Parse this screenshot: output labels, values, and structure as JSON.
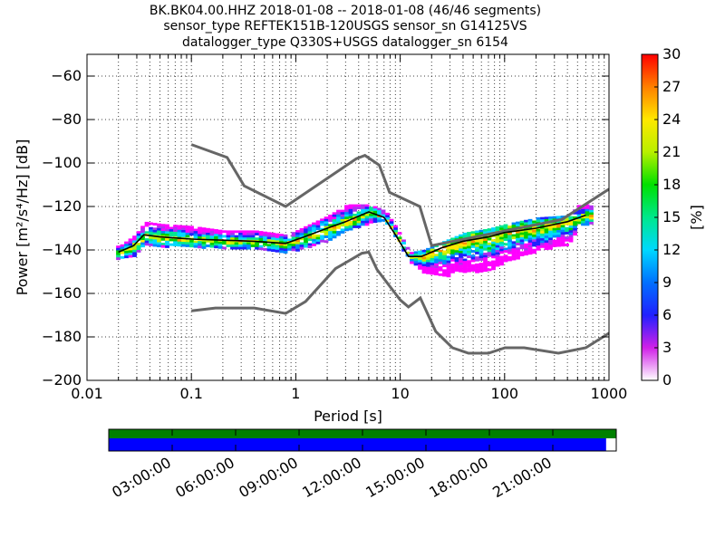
{
  "chart_data": [
    {
      "type": "heatmap",
      "title_lines": [
        "BK.BK04.00.HHZ   2018-01-08 -- 2018-01-08  (46/46 segments)",
        "sensor_type REFTEK151B-120USGS sensor_sn G14125VS",
        "datalogger_type Q330S+USGS datalogger_sn 6154"
      ],
      "xlabel": "Period [s]",
      "ylabel": "Power [m²/s⁴/Hz] [dB]",
      "x_scale": "log",
      "xlim": [
        0.01,
        1000
      ],
      "ylim": [
        -200,
        -50
      ],
      "x_tick_labels": [
        "0.01",
        "0.1",
        "1",
        "10",
        "100",
        "1000"
      ],
      "y_ticks": [
        -200,
        -180,
        -160,
        -140,
        -120,
        -100,
        -80,
        -60
      ],
      "grid": true,
      "colorbar": {
        "label": "[%]",
        "min": 0,
        "max": 30,
        "ticks": [
          0,
          3,
          6,
          9,
          12,
          15,
          18,
          21,
          24,
          27,
          30
        ]
      },
      "noise_models": [
        {
          "name": "high",
          "x": [
            0.1,
            0.22,
            0.32,
            0.8,
            3.8,
            4.6,
            6.3,
            7.9,
            15.4,
            20,
            354,
            1000
          ],
          "y": [
            -91.5,
            -97.4,
            -110.5,
            -120,
            -98,
            -96.5,
            -101,
            -113.5,
            -120,
            -138,
            -126,
            -112
          ]
        },
        {
          "name": "low",
          "x": [
            0.1,
            0.17,
            0.4,
            0.8,
            1.24,
            2.4,
            4.3,
            5,
            6,
            10,
            12,
            15.6,
            21.9,
            31.6,
            45,
            70,
            101,
            154,
            328,
            600,
            1000
          ],
          "y": [
            -168,
            -166.7,
            -166.7,
            -169.2,
            -163.7,
            -148.6,
            -141.5,
            -141,
            -149,
            -163,
            -166.2,
            -162.1,
            -177.5,
            -185,
            -187.5,
            -187.5,
            -185,
            -185,
            -187.5,
            -185,
            -178.3
          ]
        }
      ],
      "mean_curve": {
        "x": [
          0.02,
          0.028,
          0.035,
          0.05,
          0.1,
          0.2,
          0.4,
          0.8,
          1.2,
          2,
          3,
          5,
          7,
          9,
          12,
          16,
          25,
          40,
          70,
          100,
          200,
          400,
          600
        ],
        "y": [
          -141,
          -138,
          -133,
          -134,
          -135,
          -135.5,
          -136,
          -137,
          -134,
          -130,
          -127,
          -122.5,
          -125,
          -133,
          -143,
          -143,
          -139,
          -136,
          -134,
          -132,
          -130,
          -127,
          -124
        ]
      },
      "upper_envelope": {
        "x": [
          0.02,
          0.028,
          0.035,
          0.05,
          0.1,
          0.2,
          0.4,
          0.8,
          1.2,
          2,
          3,
          5,
          7,
          9,
          12,
          16,
          25,
          40,
          70,
          100,
          200,
          400,
          500,
          600,
          700
        ],
        "y": [
          -138,
          -133,
          -127,
          -128,
          -129,
          -131,
          -131,
          -133,
          -129,
          -124,
          -119,
          -119,
          -122,
          -130,
          -141,
          -140,
          -136,
          -132,
          -130,
          -128,
          -125,
          -124,
          -119,
          -119,
          -120
        ]
      },
      "lower_envelope": {
        "x": [
          0.02,
          0.028,
          0.035,
          0.05,
          0.1,
          0.2,
          0.4,
          0.8,
          1.2,
          2,
          3,
          5,
          7,
          9,
          12,
          16,
          25,
          40,
          70,
          100,
          200,
          400,
          500,
          600,
          700
        ],
        "y": [
          -144,
          -142,
          -137,
          -138,
          -138,
          -139,
          -139,
          -141,
          -139,
          -135,
          -131,
          -127,
          -127,
          -135,
          -145,
          -150,
          -152,
          -150,
          -149,
          -145,
          -140,
          -137,
          -128,
          -128,
          -128
        ]
      }
    },
    {
      "type": "timeline",
      "time_labels": [
        "03:00:00",
        "06:00:00",
        "09:00:00",
        "12:00:00",
        "15:00:00",
        "18:00:00",
        "21:00:00"
      ],
      "green_coverage": [
        0,
        1
      ],
      "blue_coverage": [
        0,
        0.98
      ]
    }
  ]
}
